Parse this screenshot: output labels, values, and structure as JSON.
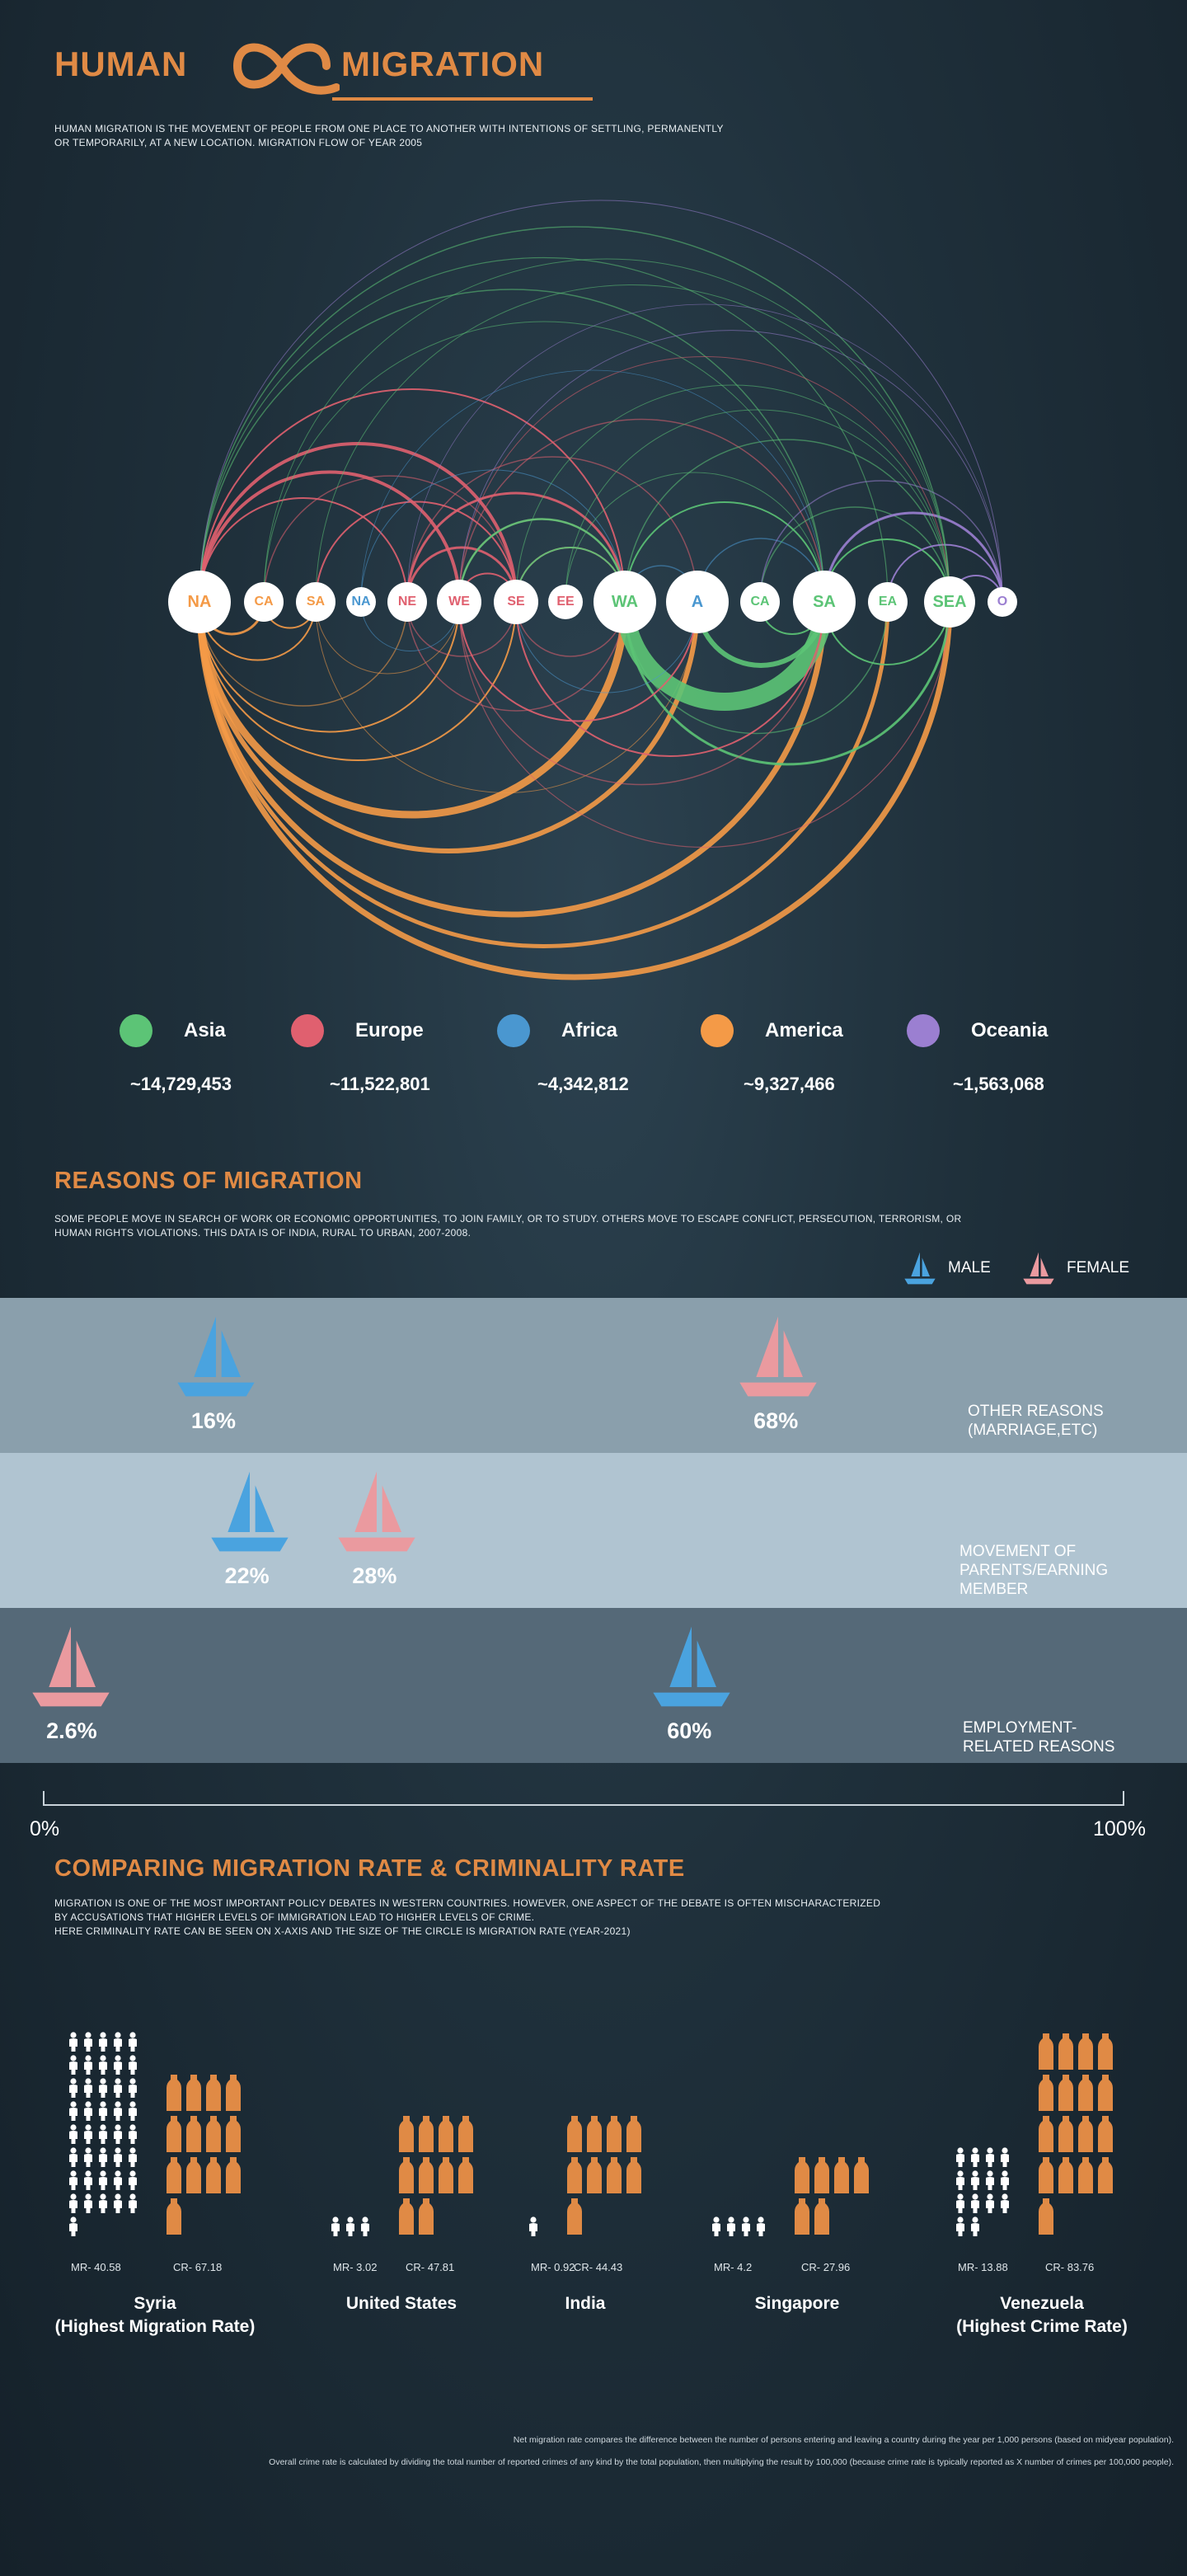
{
  "header": {
    "word_left": "HUMAN",
    "word_right": "MIGRATION",
    "description": "HUMAN MIGRATION IS THE MOVEMENT OF PEOPLE FROM ONE PLACE TO ANOTHER WITH INTENTIONS OF SETTLING, PERMANENTLY OR TEMPORARILY, AT A NEW LOCATION. MIGRATION FLOW OF YEAR 2005"
  },
  "colors": {
    "asia": "#5cc476",
    "europe": "#e0606f",
    "africa": "#4a97d0",
    "america": "#f49a47",
    "oceania": "#9b7fd1",
    "accent": "#e08a45",
    "male": "#4aa3df",
    "female": "#ea9a9f"
  },
  "chart_data": [
    {
      "type": "arc-diagram",
      "nodes": [
        {
          "label": "NA",
          "continent": "america"
        },
        {
          "label": "CA",
          "continent": "america"
        },
        {
          "label": "SA",
          "continent": "america"
        },
        {
          "label": "NA",
          "continent": "africa"
        },
        {
          "label": "NE",
          "continent": "europe"
        },
        {
          "label": "WE",
          "continent": "europe"
        },
        {
          "label": "SE",
          "continent": "europe"
        },
        {
          "label": "EE",
          "continent": "europe"
        },
        {
          "label": "WA",
          "continent": "asia"
        },
        {
          "label": "A",
          "continent": "africa"
        },
        {
          "label": "CA",
          "continent": "asia"
        },
        {
          "label": "SA",
          "continent": "asia"
        },
        {
          "label": "EA",
          "continent": "asia"
        },
        {
          "label": "SEA",
          "continent": "asia"
        },
        {
          "label": "O",
          "continent": "oceania"
        }
      ],
      "legend": [
        {
          "name": "Asia",
          "total": "~14,729,453",
          "continent": "asia"
        },
        {
          "name": "Europe",
          "total": "~11,522,801",
          "continent": "europe"
        },
        {
          "name": "Africa",
          "total": "~4,342,812",
          "continent": "africa"
        },
        {
          "name": "America",
          "total": "~9,327,466",
          "continent": "america"
        },
        {
          "name": "Oceania",
          "total": "~1,563,068",
          "continent": "oceania"
        }
      ]
    },
    {
      "type": "bar",
      "title": "REASONS OF MIGRATION",
      "x_range_labels": [
        "0%",
        "100%"
      ],
      "series": [
        {
          "name": "MALE"
        },
        {
          "name": "FEMALE"
        }
      ],
      "rows": [
        {
          "reason": "OTHER REASONS (MARRIAGE,ETC)",
          "male_value": 16,
          "female_value": 68,
          "male_label": "16%",
          "female_label": "68%"
        },
        {
          "reason": "MOVEMENT OF PARENTS/EARNING MEMBER",
          "male_value": 22,
          "female_value": 28,
          "male_label": "22%",
          "female_label": "28%"
        },
        {
          "reason": "EMPLOYMENT-RELATED REASONS",
          "male_value": 60,
          "female_value": 2.6,
          "male_label": "60%",
          "female_label": "2.6%"
        }
      ]
    },
    {
      "type": "pictogram",
      "title": "COMPARING MIGRATION RATE & CRIMINALITY RATE",
      "countries": [
        {
          "name": "Syria",
          "note": "(Highest Migration Rate)",
          "mr": 40.58,
          "cr": 67.18,
          "mr_label": "MR- 40.58",
          "cr_label": "CR- 67.18"
        },
        {
          "name": "United States",
          "note": "",
          "mr": 3.02,
          "cr": 47.81,
          "mr_label": "MR- 3.02",
          "cr_label": "CR- 47.81"
        },
        {
          "name": "India",
          "note": "",
          "mr": 0.92,
          "cr": 44.43,
          "mr_label": "MR- 0.92",
          "cr_label": "CR- 44.43"
        },
        {
          "name": "Singapore",
          "note": "",
          "mr": 4.2,
          "cr": 27.96,
          "mr_label": "MR- 4.2",
          "cr_label": "CR- 27.96"
        },
        {
          "name": "Venezuela",
          "note": "(Highest Crime Rate)",
          "mr": 13.88,
          "cr": 83.76,
          "mr_label": "MR- 13.88",
          "cr_label": "CR- 83.76"
        }
      ]
    }
  ],
  "reasons": {
    "title": "REASONS OF MIGRATION",
    "description": "SOME PEOPLE MOVE IN SEARCH OF WORK OR ECONOMIC OPPORTUNITIES, TO JOIN FAMILY, OR TO STUDY. OTHERS MOVE TO ESCAPE CONFLICT, PERSECUTION, TERRORISM, OR HUMAN RIGHTS VIOLATIONS. THIS DATA IS OF INDIA, RURAL TO URBAN, 2007-2008.",
    "legend_male": "MALE",
    "legend_female": "FEMALE",
    "axis_min": "0%",
    "axis_max": "100%",
    "row1_label_a": "OTHER REASONS",
    "row1_label_b": "(MARRIAGE,ETC)",
    "row2_label_a": "MOVEMENT OF",
    "row2_label_b": "PARENTS/EARNING",
    "row2_label_c": "MEMBER",
    "row3_label_a": "EMPLOYMENT-",
    "row3_label_b": "RELATED REASONS"
  },
  "crime": {
    "title": "COMPARING MIGRATION RATE & CRIMINALITY RATE",
    "desc1": "MIGRATION IS ONE OF THE MOST IMPORTANT POLICY DEBATES IN WESTERN COUNTRIES. HOWEVER, ONE ASPECT OF THE DEBATE IS OFTEN MISCHARACTERIZED",
    "desc2": "BY ACCUSATIONS THAT HIGHER LEVELS OF IMMIGRATION LEAD TO HIGHER LEVELS OF CRIME.",
    "desc3": "HERE CRIMINALITY RATE CAN BE SEEN ON X-AXIS AND THE SIZE OF THE CIRCLE IS MIGRATION RATE (YEAR-2021)"
  },
  "footnotes": {
    "net": "Net migration rate compares the difference between the number of persons entering and leaving a country during the year per 1,000 persons (based on midyear population).",
    "crime": "Overall crime rate is calculated by dividing the total number of reported crimes of any kind by the total population, then multiplying the result by 100,000 (because crime rate is typically reported as X number of crimes per 100,000 people)."
  }
}
